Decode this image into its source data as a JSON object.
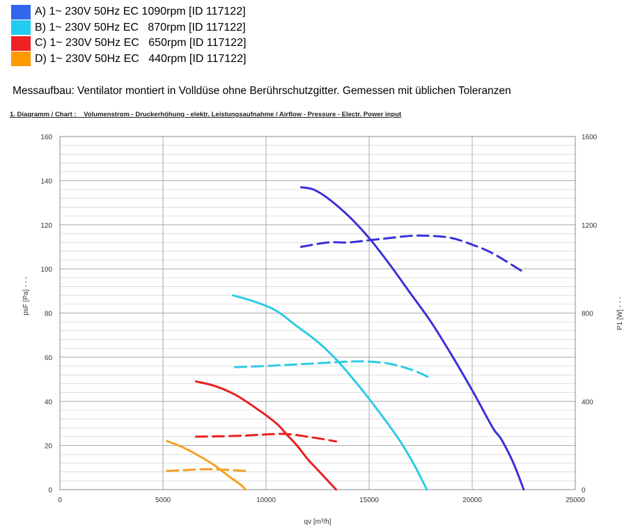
{
  "legend": [
    {
      "label": "A) 1~ 230V 50Hz EC 1090rpm [ID 117122]",
      "color": "#3366ee"
    },
    {
      "label": "B) 1~ 230V 50Hz EC   870rpm [ID 117122]",
      "color": "#22ccee"
    },
    {
      "label": "C) 1~ 230V 50Hz EC   650rpm [ID 117122]",
      "color": "#ee2222"
    },
    {
      "label": "D) 1~ 230V 50Hz EC   440rpm [ID 117122]",
      "color": "#ff9900"
    }
  ],
  "note": "Messaufbau: Ventilator montiert in Volldüse ohne Berührschutzgitter. Gemessen mit üblichen  Toleranzen",
  "caption": "1. Diagramm / Chart :    Volumenstrom - Druckerhöhung - elektr. Leistungsaufnahme / Airflow - Pressure - Electr. Power input",
  "chart_data": {
    "type": "line",
    "xlabel": "qv [m³/h]",
    "ylabel": "psF [Pa]  - - -",
    "y2label": "P1 [W]  - - -",
    "xlim": [
      0,
      25000
    ],
    "ylim": [
      0,
      160
    ],
    "y2lim": [
      0,
      1600
    ],
    "xticks": [
      0,
      5000,
      10000,
      15000,
      20000,
      25000
    ],
    "yticks": [
      0,
      20,
      40,
      60,
      80,
      100,
      120,
      140,
      160
    ],
    "y2ticks": [
      0,
      400,
      800,
      1200,
      1600
    ],
    "grid": true,
    "series": [
      {
        "name": "A",
        "kind": "pressure",
        "axis": "left",
        "color": "#3b30d8",
        "x": [
          11700,
          12300,
          13000,
          14000,
          15000,
          16000,
          17000,
          18000,
          19000,
          20000,
          21000,
          21400,
          22000,
          22500
        ],
        "y": [
          137,
          136,
          132,
          124,
          114,
          102,
          89,
          76,
          61,
          45,
          28,
          23,
          12,
          0
        ]
      },
      {
        "name": "A",
        "kind": "power",
        "axis": "right",
        "color": "#3b30d8",
        "x": [
          11700,
          13000,
          14000,
          15000,
          16000,
          17000,
          18000,
          19000,
          20000,
          21000,
          22500
        ],
        "y": [
          1100,
          1120,
          1120,
          1130,
          1140,
          1150,
          1150,
          1140,
          1110,
          1070,
          985
        ]
      },
      {
        "name": "B",
        "kind": "pressure",
        "axis": "left",
        "color": "#2ccbe4",
        "x": [
          8400,
          9500,
          10500,
          11500,
          12500,
          13500,
          14500,
          15500,
          16500,
          17200,
          17800
        ],
        "y": [
          88,
          85,
          81,
          74,
          67,
          58,
          47,
          35,
          22,
          11,
          0
        ]
      },
      {
        "name": "B",
        "kind": "power",
        "axis": "right",
        "color": "#2ccbe4",
        "x": [
          8500,
          10000,
          11000,
          12000,
          13000,
          14000,
          15000,
          16000,
          17000,
          18000
        ],
        "y": [
          555,
          560,
          565,
          570,
          575,
          580,
          580,
          570,
          545,
          505
        ]
      },
      {
        "name": "C",
        "kind": "pressure",
        "axis": "left",
        "color": "#e82020",
        "x": [
          6600,
          7500,
          8500,
          9500,
          10500,
          11000,
          11500,
          12000,
          12500,
          13000,
          13400
        ],
        "y": [
          49,
          47,
          43,
          37,
          30,
          25,
          20,
          14,
          9,
          4,
          0
        ]
      },
      {
        "name": "C",
        "kind": "power",
        "axis": "right",
        "color": "#e82020",
        "x": [
          6600,
          8000,
          9000,
          10000,
          11000,
          12000,
          13000,
          13400
        ],
        "y": [
          240,
          242,
          245,
          250,
          252,
          240,
          225,
          218
        ]
      },
      {
        "name": "D",
        "kind": "pressure",
        "axis": "left",
        "color": "#f5a020",
        "x": [
          5200,
          6000,
          6800,
          7500,
          8200,
          8800,
          9000
        ],
        "y": [
          22,
          19,
          15,
          11,
          6,
          2,
          0
        ]
      },
      {
        "name": "D",
        "kind": "power",
        "axis": "right",
        "color": "#f5a020",
        "x": [
          5200,
          6000,
          7000,
          8000,
          9000
        ],
        "y": [
          85,
          88,
          92,
          90,
          85
        ]
      }
    ]
  }
}
